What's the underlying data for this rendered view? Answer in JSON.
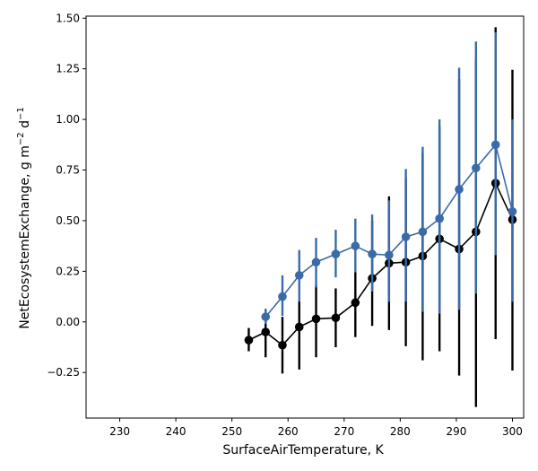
{
  "chart_data": {
    "type": "line",
    "xlabel": "SurfaceAirTemperature,  K",
    "ylabel_text": "NetEcosystemExchange,  g m",
    "ylabel_sup1": "−2",
    "ylabel_mid": " d",
    "ylabel_sup2": "−1",
    "xlim": [
      224,
      302
    ],
    "ylim": [
      -0.475,
      1.51
    ],
    "xticks": [
      230,
      240,
      250,
      260,
      270,
      280,
      290,
      300
    ],
    "xtick_labels": [
      "230",
      "240",
      "250",
      "260",
      "270",
      "280",
      "290",
      "300"
    ],
    "yticks": [
      -0.25,
      0,
      0.25,
      0.5,
      0.75,
      1.0,
      1.25,
      1.5
    ],
    "ytick_labels": [
      "−0.25",
      "0.00",
      "0.25",
      "0.50",
      "0.75",
      "1.00",
      "1.25",
      "1.50"
    ],
    "grid": false,
    "series": [
      {
        "color": "#000000",
        "x": [
          253,
          256,
          259,
          262,
          265,
          268.5,
          272,
          275,
          278,
          281,
          284,
          287,
          290.5,
          293.5,
          297,
          300
        ],
        "y": [
          -0.09,
          -0.05,
          -0.115,
          -0.025,
          0.015,
          0.02,
          0.095,
          0.215,
          0.29,
          0.295,
          0.325,
          0.41,
          0.36,
          0.445,
          0.685,
          0.505
        ],
        "ylow": [
          -0.145,
          -0.175,
          -0.255,
          -0.235,
          -0.175,
          -0.125,
          -0.075,
          -0.02,
          -0.04,
          -0.12,
          -0.19,
          -0.145,
          -0.265,
          -0.42,
          -0.085,
          -0.24
        ],
        "yhigh": [
          -0.03,
          0.06,
          0.025,
          0.105,
          0.18,
          0.165,
          0.245,
          0.5,
          0.62,
          0.71,
          0.835,
          0.965,
          1.2,
          1.295,
          1.455,
          1.245
        ]
      },
      {
        "color": "#3a6ba8",
        "x": [
          256,
          259,
          262,
          265,
          268.5,
          272,
          275,
          278,
          281,
          284,
          287,
          290.5,
          293.5,
          297,
          300
        ],
        "y": [
          0.025,
          0.125,
          0.23,
          0.295,
          0.335,
          0.375,
          0.335,
          0.33,
          0.42,
          0.445,
          0.51,
          0.655,
          0.76,
          0.875,
          0.545
        ],
        "ylow": [
          -0.01,
          0.03,
          0.1,
          0.17,
          0.22,
          0.245,
          0.15,
          0.1,
          0.1,
          0.05,
          0.04,
          0.06,
          0.14,
          0.33,
          0.1
        ],
        "yhigh": [
          0.065,
          0.23,
          0.355,
          0.415,
          0.455,
          0.51,
          0.53,
          0.6,
          0.755,
          0.865,
          1.0,
          1.255,
          1.385,
          1.43,
          1.0
        ]
      }
    ]
  }
}
